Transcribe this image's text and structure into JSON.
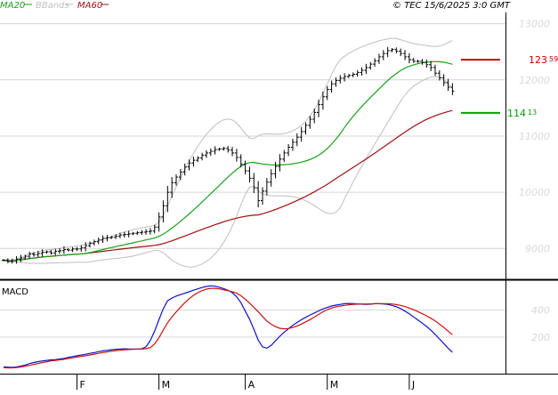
{
  "chart_data": [
    {
      "type": "ohlc",
      "copyright": "© TEC 15/6/2025 3:0 GMT",
      "legend": [
        {
          "name": "MA20",
          "color": "#1aa01a"
        },
        {
          "name": "BBands",
          "color": "#bfbfbf"
        },
        {
          "name": "MA60",
          "color": "#a01010"
        }
      ],
      "y_ticks": [
        {
          "value": 9000,
          "label": "9000"
        },
        {
          "value": 10000,
          "label": "10000"
        },
        {
          "value": 11000,
          "label": "11000"
        },
        {
          "value": 12000,
          "label": "12000"
        },
        {
          "value": 13000,
          "label": "13000"
        }
      ],
      "ylim": [
        8450,
        13200
      ],
      "x_ticks": [
        {
          "index": 17,
          "label": "F"
        },
        {
          "index": 36,
          "label": "M"
        },
        {
          "index": 56,
          "label": "A"
        },
        {
          "index": 75,
          "label": "M"
        },
        {
          "index": 94,
          "label": "J"
        }
      ],
      "levels": [
        {
          "value": 12359,
          "label_int": "123",
          "label_dec": "59",
          "color": "#cc0000"
        },
        {
          "value": 11413,
          "label_int": "114",
          "label_dec": "13",
          "color": "#00a000"
        }
      ],
      "closes": [
        8790,
        8770,
        8780,
        8810,
        8830,
        8860,
        8900,
        8890,
        8910,
        8930,
        8940,
        8920,
        8950,
        8960,
        8980,
        8970,
        8990,
        8990,
        9010,
        9050,
        9090,
        9120,
        9150,
        9180,
        9190,
        9200,
        9220,
        9240,
        9250,
        9260,
        9270,
        9280,
        9290,
        9300,
        9310,
        9380,
        9560,
        9760,
        10000,
        10170,
        10270,
        10360,
        10450,
        10520,
        10570,
        10610,
        10660,
        10700,
        10730,
        10760,
        10770,
        10780,
        10750,
        10700,
        10620,
        10500,
        10380,
        10250,
        10080,
        9850,
        10020,
        10180,
        10330,
        10460,
        10590,
        10700,
        10800,
        10890,
        10980,
        11080,
        11190,
        11300,
        11420,
        11560,
        11700,
        11830,
        11930,
        11990,
        12030,
        12060,
        12080,
        12100,
        12130,
        12170,
        12220,
        12280,
        12340,
        12410,
        12470,
        12520,
        12540,
        12510,
        12470,
        12410,
        12360,
        12330,
        12330,
        12310,
        12270,
        12220,
        12120,
        12040,
        11950,
        11870,
        11800
      ]
    },
    {
      "type": "line",
      "title": "MACD",
      "y_ticks": [
        {
          "value": 200,
          "label": "200"
        },
        {
          "value": 400,
          "label": "400"
        }
      ],
      "ylim": [
        -70,
        600
      ],
      "series": [
        {
          "color": "#1010cc",
          "values": [
            -20,
            -22,
            -24,
            -21,
            -15,
            -6,
            4,
            12,
            19,
            24,
            28,
            32,
            34,
            38,
            42,
            50,
            56,
            62,
            67,
            73,
            80,
            85,
            92,
            98,
            102,
            107,
            110,
            112,
            113,
            112,
            112,
            112,
            113,
            128,
            175,
            245,
            328,
            408,
            468,
            488,
            503,
            513,
            524,
            534,
            546,
            556,
            566,
            574,
            578,
            576,
            568,
            558,
            545,
            528,
            498,
            453,
            392,
            332,
            258,
            178,
            128,
            118,
            138,
            172,
            206,
            236,
            262,
            286,
            308,
            328,
            346,
            363,
            378,
            393,
            408,
            419,
            429,
            436,
            441,
            446,
            448,
            447,
            445,
            443,
            441,
            443,
            446,
            446,
            444,
            441,
            434,
            424,
            410,
            392,
            372,
            349,
            326,
            303,
            278,
            251,
            220,
            186,
            152,
            118,
            88
          ]
        },
        {
          "color": "#cc1010",
          "values": [
            -26,
            -27,
            -27,
            -25,
            -21,
            -15,
            -9,
            -2,
            5,
            12,
            18,
            24,
            28,
            32,
            36,
            42,
            47,
            52,
            57,
            62,
            68,
            74,
            80,
            86,
            91,
            96,
            100,
            103,
            106,
            108,
            110,
            111,
            112,
            114,
            122,
            150,
            195,
            251,
            306,
            348,
            386,
            421,
            454,
            483,
            508,
            528,
            543,
            554,
            560,
            560,
            556,
            549,
            542,
            534,
            525,
            505,
            480,
            451,
            420,
            388,
            352,
            319,
            295,
            277,
            265,
            261,
            263,
            271,
            282,
            296,
            312,
            329,
            348,
            367,
            387,
            403,
            414,
            423,
            429,
            434,
            438,
            441,
            443,
            444,
            444,
            445,
            446,
            447,
            447,
            446,
            444,
            440,
            434,
            425,
            414,
            402,
            388,
            373,
            357,
            339,
            319,
            296,
            271,
            244,
            217
          ]
        }
      ]
    }
  ]
}
